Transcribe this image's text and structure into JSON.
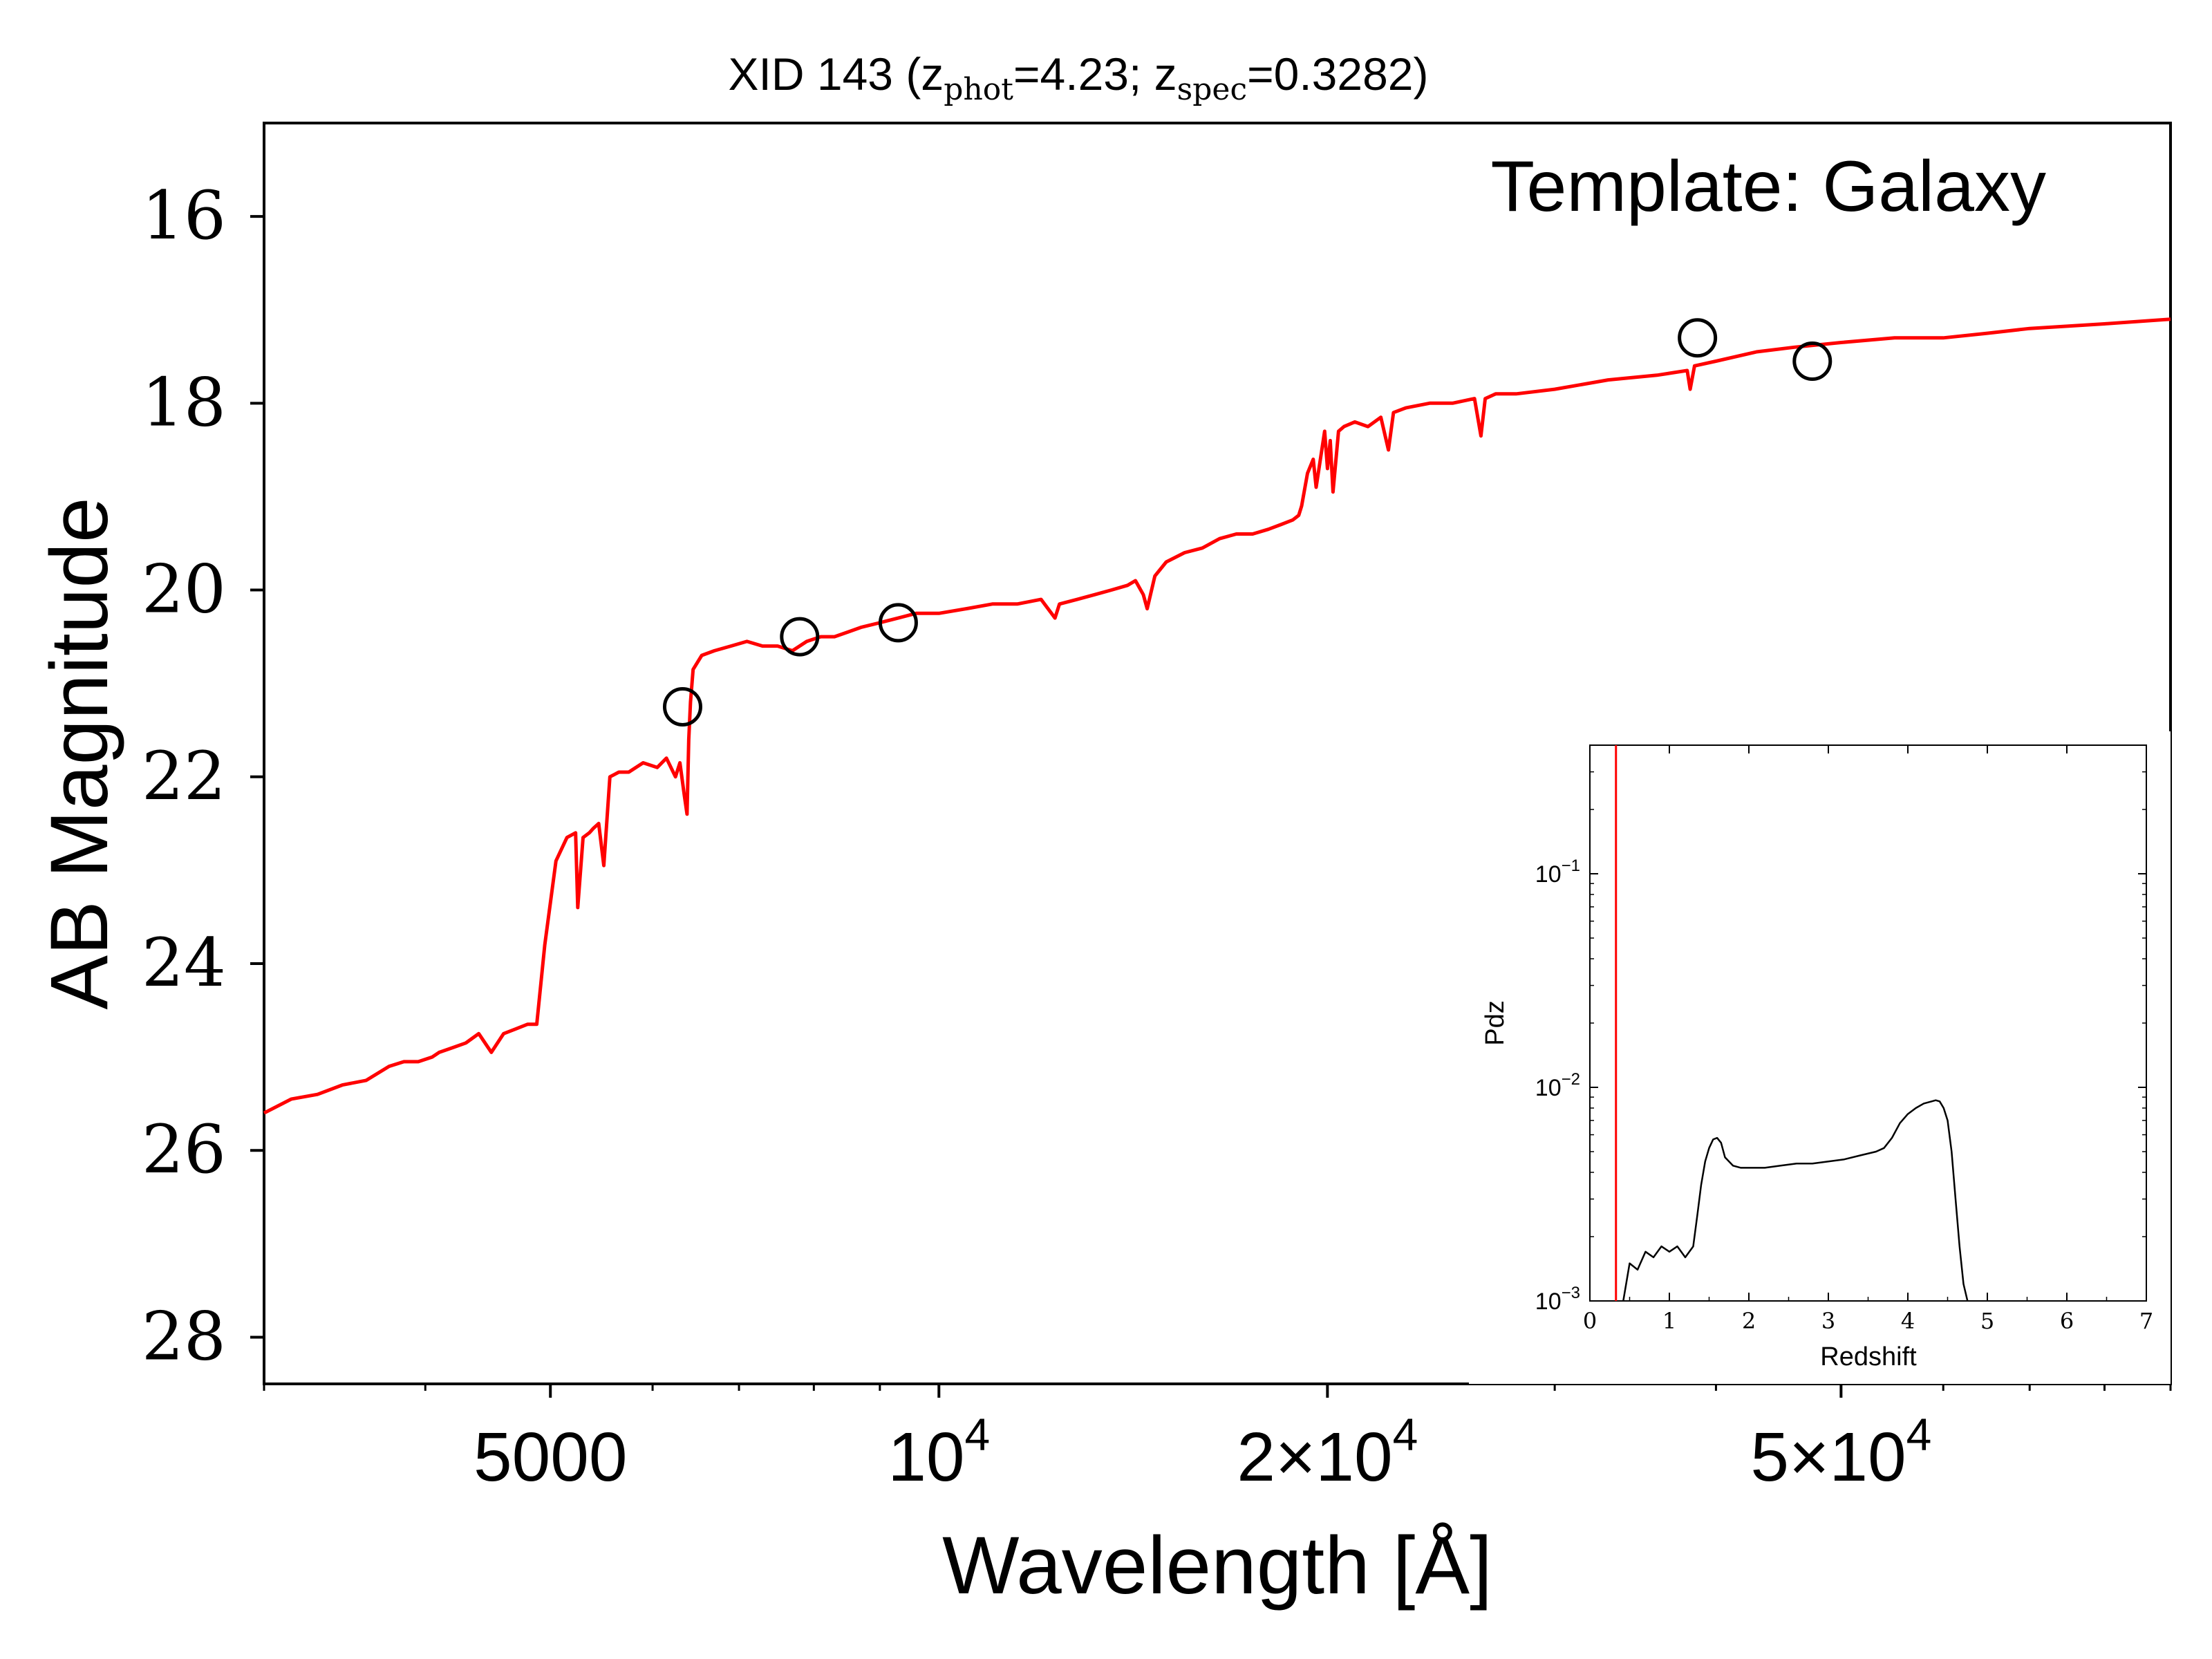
{
  "chart_data": [
    {
      "type": "line",
      "title": {
        "prefix": "XID 143 (z",
        "sub1": "phot",
        "mid": "=4.23; z",
        "sub2": "spec",
        "suffix": "=0.3282)"
      },
      "annotation": "Template: Galaxy",
      "xlabel": "Wavelength [Å]",
      "ylabel": "AB Magnitude",
      "x_scale": "log",
      "xlim": [
        3000,
        90000
      ],
      "ylim": [
        28.5,
        15
      ],
      "y_inverted": true,
      "x_ticks": [
        {
          "value": 5000,
          "label": "5000"
        },
        {
          "value": 10000,
          "label": "10",
          "sup": "4"
        },
        {
          "value": 20000,
          "label": "2×10",
          "sup": "4"
        },
        {
          "value": 50000,
          "label": "5×10",
          "sup": "4"
        }
      ],
      "y_ticks": [
        16,
        18,
        20,
        22,
        24,
        26,
        28
      ],
      "series": [
        {
          "color": "#ff0000",
          "x": [
            3000,
            3150,
            3300,
            3450,
            3600,
            3750,
            3850,
            3950,
            4050,
            4100,
            4200,
            4300,
            4400,
            4500,
            4600,
            4700,
            4800,
            4860,
            4880,
            4950,
            5050,
            5150,
            5230,
            5250,
            5300,
            5360,
            5400,
            5450,
            5500,
            5560,
            5650,
            5750,
            5900,
            6050,
            6150,
            6250,
            6300,
            6350,
            6380,
            6400,
            6420,
            6450,
            6550,
            6700,
            6900,
            7100,
            7300,
            7500,
            7700,
            7900,
            8100,
            8300,
            8500,
            8700,
            9000,
            9300,
            9600,
            10000,
            10500,
            11000,
            11500,
            12000,
            12300,
            12400,
            12800,
            13200,
            13600,
            14000,
            14200,
            14400,
            14500,
            14700,
            15000,
            15500,
            16000,
            16500,
            17000,
            17500,
            18000,
            18400,
            18800,
            19000,
            19100,
            19300,
            19500,
            19600,
            19800,
            19900,
            20000,
            20100,
            20200,
            20400,
            20600,
            21000,
            21500,
            22000,
            22300,
            22500,
            23000,
            24000,
            25000,
            26000,
            26300,
            26500,
            27000,
            28000,
            30000,
            33000,
            36000,
            38000,
            38200,
            38500,
            40000,
            43000,
            46000,
            50000,
            55000,
            60000,
            65000,
            70000,
            80000,
            90000
          ],
          "y": [
            25.6,
            25.45,
            25.4,
            25.3,
            25.25,
            25.1,
            25.05,
            25.05,
            25.0,
            24.95,
            24.9,
            24.85,
            24.75,
            24.95,
            24.75,
            24.7,
            24.65,
            24.65,
            24.65,
            23.8,
            22.9,
            22.65,
            22.6,
            23.4,
            22.65,
            22.6,
            22.55,
            22.5,
            22.95,
            22.0,
            21.95,
            21.95,
            21.85,
            21.9,
            21.8,
            22.0,
            21.85,
            22.2,
            22.4,
            21.6,
            21.2,
            20.85,
            20.7,
            20.65,
            20.6,
            20.55,
            20.6,
            20.6,
            20.65,
            20.55,
            20.5,
            20.5,
            20.45,
            20.4,
            20.35,
            20.3,
            20.25,
            20.25,
            20.2,
            20.15,
            20.15,
            20.1,
            20.3,
            20.15,
            20.1,
            20.05,
            20.0,
            19.95,
            19.9,
            20.05,
            20.2,
            19.85,
            19.7,
            19.6,
            19.55,
            19.45,
            19.4,
            19.4,
            19.35,
            19.3,
            19.25,
            19.2,
            19.1,
            18.75,
            18.6,
            18.9,
            18.5,
            18.3,
            18.7,
            18.4,
            18.95,
            18.3,
            18.25,
            18.2,
            18.25,
            18.15,
            18.5,
            18.1,
            18.05,
            18.0,
            18.0,
            17.95,
            18.35,
            17.95,
            17.9,
            17.9,
            17.85,
            17.75,
            17.7,
            17.65,
            17.85,
            17.6,
            17.55,
            17.45,
            17.4,
            17.35,
            17.3,
            17.3,
            17.25,
            17.2,
            17.15,
            17.1
          ]
        },
        {
          "type": "scatter",
          "marker": "open-circle",
          "color": "#000000",
          "x": [
            6330,
            7800,
            9300,
            38700,
            47500
          ],
          "y": [
            21.25,
            20.5,
            20.35,
            17.3,
            17.55
          ]
        }
      ]
    },
    {
      "type": "line",
      "role": "inset",
      "xlabel": "Redshift",
      "ylabel": "Pdz",
      "y_scale": "log",
      "xlim": [
        0,
        7
      ],
      "ylim": [
        0.001,
        0.4
      ],
      "x_ticks": [
        "0",
        "1",
        "2",
        "3",
        "4",
        "5",
        "6",
        "7"
      ],
      "y_ticks": [
        {
          "value": 0.001,
          "label": "10",
          "sup": "−3"
        },
        {
          "value": 0.01,
          "label": "10",
          "sup": "−2"
        },
        {
          "value": 0.1,
          "label": "10",
          "sup": "−1"
        }
      ],
      "vline": {
        "x": 0.3282,
        "color": "#ff0000"
      },
      "series": [
        {
          "color": "#000000",
          "x": [
            0.42,
            0.5,
            0.6,
            0.7,
            0.8,
            0.9,
            1.0,
            1.1,
            1.2,
            1.3,
            1.35,
            1.4,
            1.45,
            1.5,
            1.55,
            1.6,
            1.65,
            1.7,
            1.8,
            1.9,
            2.0,
            2.2,
            2.4,
            2.6,
            2.8,
            3.0,
            3.2,
            3.4,
            3.6,
            3.7,
            3.8,
            3.9,
            4.0,
            4.1,
            4.2,
            4.3,
            4.35,
            4.4,
            4.45,
            4.5,
            4.55,
            4.6,
            4.65,
            4.7,
            4.75
          ],
          "y": [
            0.001,
            0.0015,
            0.0014,
            0.0017,
            0.0016,
            0.0018,
            0.0017,
            0.0018,
            0.0016,
            0.0018,
            0.0025,
            0.0035,
            0.0045,
            0.0052,
            0.0057,
            0.0058,
            0.0055,
            0.0047,
            0.0043,
            0.0042,
            0.0042,
            0.0042,
            0.0043,
            0.0044,
            0.0044,
            0.0045,
            0.0046,
            0.0048,
            0.005,
            0.0052,
            0.0058,
            0.0068,
            0.0075,
            0.008,
            0.0084,
            0.0086,
            0.0087,
            0.0086,
            0.008,
            0.007,
            0.005,
            0.003,
            0.0018,
            0.0012,
            0.001
          ]
        }
      ]
    }
  ]
}
